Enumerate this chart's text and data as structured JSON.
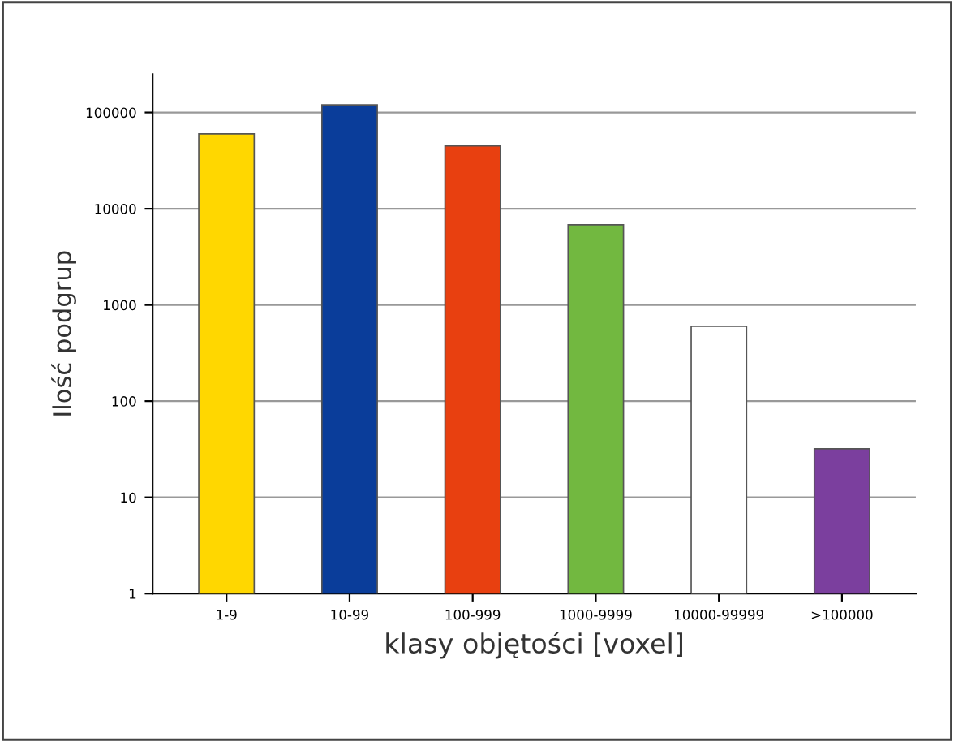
{
  "chart_data": {
    "type": "bar",
    "xlabel": "klasy objętości [voxel]",
    "ylabel": "Ilość podgrup",
    "categories": [
      "1-9",
      "10-99",
      "100-999",
      "1000-9999",
      "10000-99999",
      ">100000"
    ],
    "values": [
      60000,
      120000,
      45000,
      6800,
      600,
      32
    ],
    "colors": [
      "#ffd700",
      "#0a3d9a",
      "#e84010",
      "#72b840",
      "#ffffff",
      "#7b3f9e"
    ],
    "log": true,
    "ylim": [
      1,
      250000
    ],
    "yticks": [
      1,
      10,
      100,
      1000,
      10000,
      100000
    ],
    "grid": "y"
  }
}
